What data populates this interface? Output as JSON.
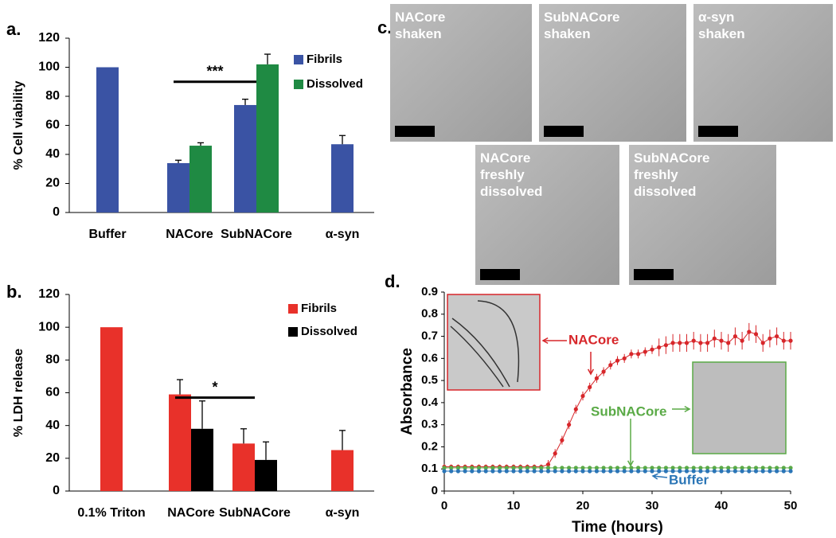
{
  "chart_data": [
    {
      "type": "bar",
      "panel_label": "a.",
      "y_label": "% Cell viability",
      "categories": [
        "Buffer",
        "NACore",
        "SubNACore",
        "α-syn"
      ],
      "series": [
        {
          "name": "Fibrils",
          "color": "#3a53a4",
          "values": [
            100,
            34,
            74,
            47
          ],
          "errors": [
            null,
            2,
            4,
            6
          ]
        },
        {
          "name": "Dissolved",
          "color": "#1f8a43",
          "values": [
            null,
            46,
            102,
            null
          ],
          "errors": [
            null,
            2,
            7,
            null
          ]
        }
      ],
      "significance": {
        "label": "***",
        "y": 90,
        "from": 1,
        "to": 2
      },
      "ylim": [
        0,
        120
      ],
      "yticks": [
        0,
        20,
        40,
        60,
        80,
        100,
        120
      ],
      "grid": false
    },
    {
      "type": "bar",
      "panel_label": "b.",
      "y_label": "% LDH release",
      "categories": [
        "0.1% Triton",
        "NACore",
        "SubNACore",
        "α-syn"
      ],
      "series": [
        {
          "name": "Fibrils",
          "color": "#e8312a",
          "values": [
            100,
            59,
            29,
            25
          ],
          "errors": [
            null,
            9,
            9,
            12
          ]
        },
        {
          "name": "Dissolved",
          "color": "#000000",
          "values": [
            null,
            38,
            19,
            null
          ],
          "errors": [
            null,
            17,
            11,
            null
          ]
        }
      ],
      "significance": {
        "label": "*",
        "y": 57,
        "from": 1,
        "to": 2
      },
      "ylim": [
        0,
        120
      ],
      "yticks": [
        0,
        20,
        40,
        60,
        80,
        100,
        120
      ],
      "grid": false
    },
    {
      "type": "line",
      "panel_label": "d.",
      "x_label": "Time (hours)",
      "y_label": "Absorbance",
      "x": [
        0,
        1,
        2,
        3,
        4,
        5,
        6,
        7,
        8,
        9,
        10,
        11,
        12,
        13,
        14,
        15,
        16,
        17,
        18,
        19,
        20,
        21,
        22,
        23,
        24,
        25,
        26,
        27,
        28,
        29,
        30,
        31,
        32,
        33,
        34,
        35,
        36,
        37,
        38,
        39,
        40,
        41,
        42,
        43,
        44,
        45,
        46,
        47,
        48,
        49,
        50
      ],
      "series": [
        {
          "name": "NACore",
          "color": "#d7262a",
          "values": [
            0.11,
            0.11,
            0.11,
            0.11,
            0.11,
            0.11,
            0.11,
            0.11,
            0.11,
            0.11,
            0.11,
            0.11,
            0.11,
            0.11,
            0.11,
            0.12,
            0.17,
            0.23,
            0.3,
            0.37,
            0.43,
            0.47,
            0.51,
            0.54,
            0.57,
            0.59,
            0.6,
            0.62,
            0.62,
            0.63,
            0.64,
            0.65,
            0.66,
            0.67,
            0.67,
            0.67,
            0.68,
            0.67,
            0.67,
            0.69,
            0.68,
            0.67,
            0.7,
            0.68,
            0.72,
            0.71,
            0.67,
            0.69,
            0.7,
            0.68,
            0.68
          ],
          "errors": [
            0.01,
            0.01,
            0.01,
            0.01,
            0.01,
            0.01,
            0.01,
            0.01,
            0.01,
            0.01,
            0.01,
            0.01,
            0.01,
            0.01,
            0.01,
            0.02,
            0.02,
            0.02,
            0.02,
            0.02,
            0.02,
            0.02,
            0.02,
            0.02,
            0.02,
            0.02,
            0.02,
            0.02,
            0.02,
            0.02,
            0.02,
            0.04,
            0.04,
            0.04,
            0.04,
            0.04,
            0.04,
            0.04,
            0.04,
            0.04,
            0.04,
            0.04,
            0.04,
            0.04,
            0.04,
            0.04,
            0.04,
            0.04,
            0.04,
            0.04,
            0.04
          ]
        },
        {
          "name": "SubNACore",
          "color": "#5aaa46",
          "values": [
            0.105,
            0.105,
            0.105,
            0.105,
            0.105,
            0.105,
            0.105,
            0.105,
            0.105,
            0.105,
            0.105,
            0.105,
            0.105,
            0.105,
            0.105,
            0.105,
            0.105,
            0.105,
            0.105,
            0.105,
            0.105,
            0.105,
            0.105,
            0.105,
            0.105,
            0.105,
            0.105,
            0.105,
            0.105,
            0.105,
            0.105,
            0.105,
            0.105,
            0.105,
            0.105,
            0.105,
            0.105,
            0.105,
            0.105,
            0.105,
            0.105,
            0.105,
            0.105,
            0.105,
            0.105,
            0.105,
            0.105,
            0.105,
            0.105,
            0.105,
            0.105
          ]
        },
        {
          "name": "Buffer",
          "color": "#2a75b6",
          "values": [
            0.09,
            0.09,
            0.09,
            0.09,
            0.09,
            0.09,
            0.09,
            0.09,
            0.09,
            0.09,
            0.09,
            0.09,
            0.09,
            0.09,
            0.09,
            0.09,
            0.09,
            0.09,
            0.09,
            0.09,
            0.09,
            0.09,
            0.09,
            0.09,
            0.09,
            0.09,
            0.09,
            0.09,
            0.09,
            0.09,
            0.09,
            0.09,
            0.09,
            0.09,
            0.09,
            0.09,
            0.09,
            0.09,
            0.09,
            0.09,
            0.09,
            0.09,
            0.09,
            0.09,
            0.09,
            0.09,
            0.09,
            0.09,
            0.09,
            0.09,
            0.09
          ]
        }
      ],
      "xlim": [
        0,
        50
      ],
      "xticks": [
        0,
        10,
        20,
        30,
        40,
        50
      ],
      "ylim": [
        0,
        0.9
      ],
      "yticks": [
        0,
        0.1,
        0.2,
        0.3,
        0.4,
        0.5,
        0.6,
        0.7,
        0.8,
        0.9
      ],
      "grid": false
    }
  ],
  "micrographs": {
    "panel_label": "c.",
    "images": [
      {
        "lines": [
          "NACore",
          "shaken"
        ]
      },
      {
        "lines": [
          "SubNACore",
          "shaken"
        ]
      },
      {
        "lines": [
          "α-syn",
          "shaken"
        ]
      },
      {
        "lines": [
          "NACore",
          "freshly",
          "dissolved"
        ]
      },
      {
        "lines": [
          "SubNACore",
          "freshly",
          "dissolved"
        ]
      }
    ]
  }
}
